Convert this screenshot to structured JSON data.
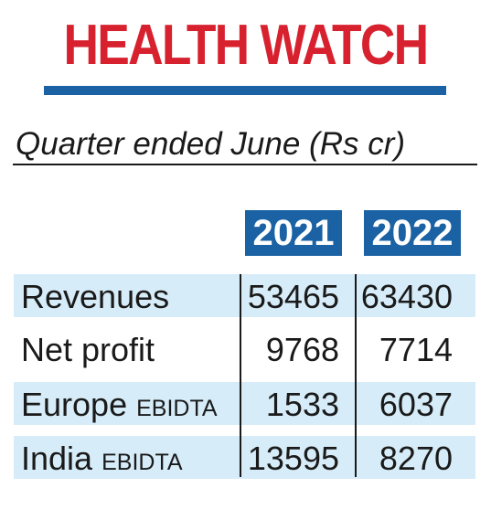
{
  "header": {
    "title": "HEALTH WATCH",
    "subtitle": "Quarter ended June (Rs cr)"
  },
  "colors": {
    "title_red": "#d7212e",
    "accent_blue": "#1a62a3",
    "row_tint": "#d6ecf8",
    "text": "#1a1a1a"
  },
  "chart_data": {
    "type": "table",
    "title": "HEALTH WATCH",
    "subtitle": "Quarter ended June (Rs cr)",
    "columns": [
      "2021",
      "2022"
    ],
    "rows": [
      {
        "label": "Revenues",
        "label_suffix": "",
        "values": [
          53465,
          63430
        ],
        "shaded": true
      },
      {
        "label": "Net profit",
        "label_suffix": "",
        "values": [
          9768,
          7714
        ],
        "shaded": false
      },
      {
        "label": "Europe",
        "label_suffix": "EBIDTA",
        "values": [
          1533,
          6037
        ],
        "shaded": true
      },
      {
        "label": "India",
        "label_suffix": "EBIDTA",
        "values": [
          13595,
          8270
        ],
        "shaded": true
      }
    ]
  }
}
